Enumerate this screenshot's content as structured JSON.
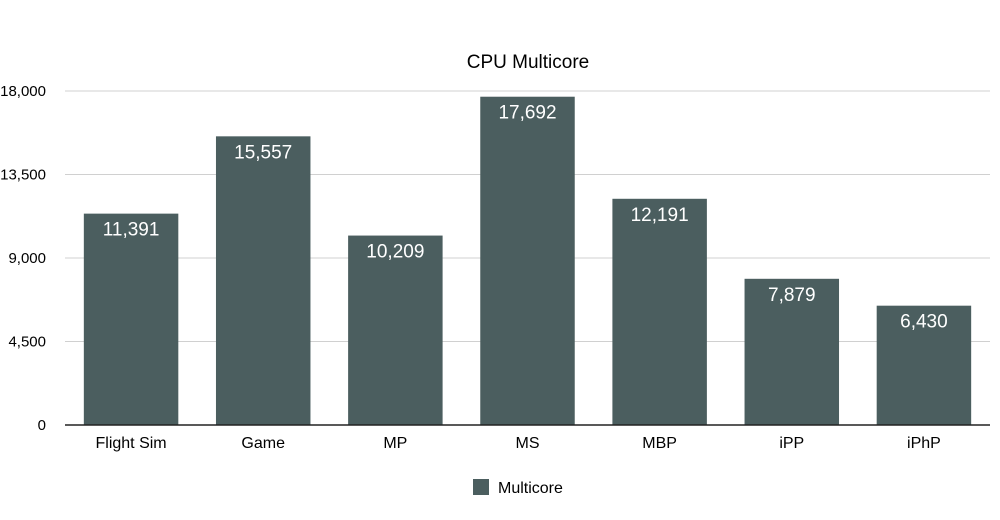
{
  "chart_data": {
    "type": "bar",
    "title": "CPU Multicore",
    "xlabel": "",
    "ylabel": "",
    "categories": [
      "Flight Sim",
      "Game",
      "MP",
      "MS",
      "MBP",
      "iPP",
      "iPhP"
    ],
    "series": [
      {
        "name": "Multicore",
        "values": [
          11391,
          15557,
          10209,
          17692,
          12191,
          7879,
          6430
        ],
        "color": "#4b5e5f"
      }
    ],
    "data_labels": [
      "11,391",
      "15,557",
      "10,209",
      "17,692",
      "12,191",
      "7,879",
      "6,430"
    ],
    "ylim": [
      0,
      18000
    ],
    "yticks": [
      0,
      4500,
      9000,
      13500,
      18000
    ],
    "ytick_labels": [
      "0",
      "4,500",
      "9,000",
      "13,500",
      "18,000"
    ],
    "grid": true,
    "legend_position": "bottom-center"
  },
  "colors": {
    "bar": "#4b5e5f",
    "grid": "#d0d0d0",
    "axis": "#222222",
    "text": "#000000",
    "data_label": "#ffffff"
  }
}
